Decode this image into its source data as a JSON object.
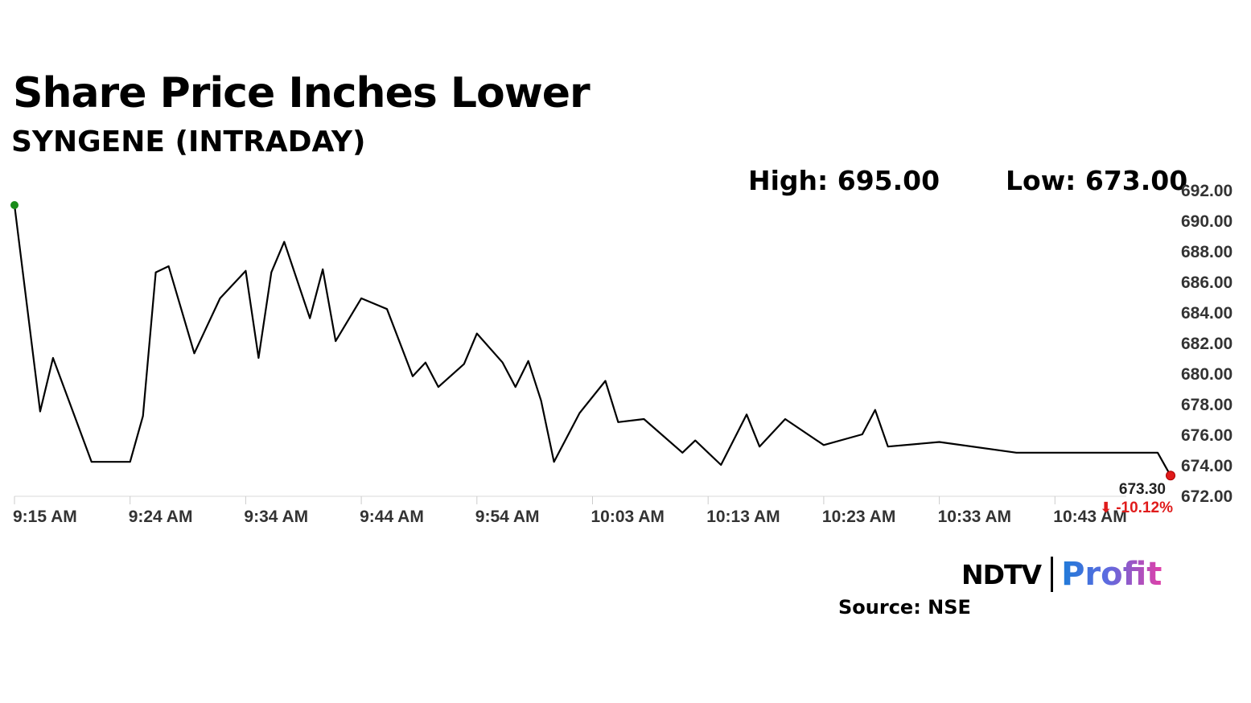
{
  "title": "Share Price Inches Lower",
  "subtitle": "SYNGENE (INTRADAY)",
  "high_label": "High: 695.00",
  "low_label": "Low: 673.00",
  "source": "Source: NSE",
  "logo": {
    "ndtv": "NDTV",
    "profit": "Profit"
  },
  "chart_data": {
    "type": "line",
    "ylim": [
      672,
      692
    ],
    "y_ticks": [
      "692.00",
      "690.00",
      "688.00",
      "686.00",
      "684.00",
      "682.00",
      "680.00",
      "678.00",
      "676.00",
      "674.00",
      "672.00"
    ],
    "x_ticks": [
      "9:15 AM",
      "9:24 AM",
      "9:34 AM",
      "9:44 AM",
      "9:54 AM",
      "10:03 AM",
      "10:13 AM",
      "10:23 AM",
      "10:33 AM",
      "10:43 AM"
    ],
    "last_value_label": "673.30",
    "change_label": "-10.12%",
    "colors": {
      "line": "#000000",
      "start_dot": "#1a8c1a",
      "end_dot": "#e01b1b",
      "change": "#e01b1b"
    },
    "series": [
      {
        "x": [
          "9:15",
          "9:17",
          "9:18",
          "9:21",
          "9:22",
          "9:23",
          "9:24",
          "9:25",
          "9:26",
          "9:27",
          "9:29",
          "9:31",
          "9:33",
          "9:34",
          "9:35",
          "9:36",
          "9:38",
          "9:39",
          "9:40",
          "9:42",
          "9:44",
          "9:46",
          "9:47",
          "9:48",
          "9:50",
          "9:51",
          "9:53",
          "9:54",
          "9:55",
          "9:56",
          "9:57",
          "9:59",
          "10:01",
          "10:02",
          "10:04",
          "10:07",
          "10:08",
          "10:10",
          "10:12",
          "10:13",
          "10:15",
          "10:18",
          "10:21",
          "10:22",
          "10:23",
          "10:27",
          "10:33",
          "10:38",
          "10:42",
          "10:44",
          "10:45"
        ],
        "values": [
          691.0,
          677.5,
          681.0,
          674.2,
          674.2,
          674.2,
          674.2,
          677.2,
          686.6,
          687.0,
          681.3,
          684.9,
          686.7,
          681.0,
          686.6,
          688.6,
          683.6,
          686.8,
          682.1,
          684.9,
          684.2,
          679.8,
          680.7,
          679.1,
          680.6,
          682.6,
          680.7,
          679.1,
          680.8,
          678.2,
          674.2,
          677.4,
          679.5,
          676.8,
          677.0,
          674.8,
          675.6,
          674.0,
          677.3,
          675.2,
          677.0,
          675.3,
          676.0,
          677.6,
          675.2,
          675.5,
          674.8,
          674.8,
          674.8,
          674.8,
          673.3
        ]
      }
    ]
  }
}
